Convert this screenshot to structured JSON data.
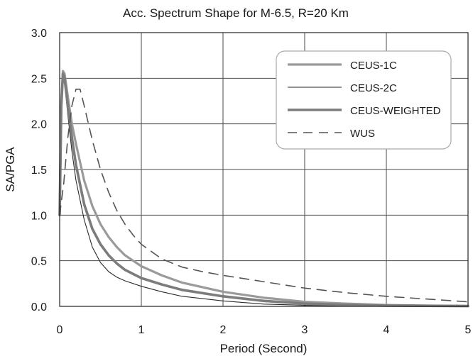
{
  "chart_data": {
    "type": "line",
    "title": "Acc. Spectrum Shape for M-6.5, R=20 Km",
    "xlabel": "Period (Second)",
    "ylabel": "SA/PGA",
    "xlim": [
      0,
      5
    ],
    "ylim": [
      0,
      3
    ],
    "xticks": [
      0,
      1,
      2,
      3,
      4,
      5
    ],
    "xtick_labels": [
      "0",
      "1",
      "2",
      "3",
      "4",
      "5"
    ],
    "yticks": [
      0,
      0.5,
      1,
      1.5,
      2,
      2.5,
      3
    ],
    "ytick_labels": [
      "0.0",
      "0.5",
      "1.0",
      "1.5",
      "2.0",
      "2.5",
      "3.0"
    ],
    "grid": true,
    "legend_position": "top-right",
    "series": [
      {
        "name": "CEUS-1C",
        "color": "#9a9a9a",
        "style": "solid-thick",
        "points": [
          [
            0,
            1.0
          ],
          [
            0.02,
            2.2
          ],
          [
            0.04,
            2.58
          ],
          [
            0.06,
            2.55
          ],
          [
            0.1,
            2.3
          ],
          [
            0.15,
            2.0
          ],
          [
            0.2,
            1.78
          ],
          [
            0.3,
            1.38
          ],
          [
            0.4,
            1.1
          ],
          [
            0.5,
            0.9
          ],
          [
            0.6,
            0.76
          ],
          [
            0.7,
            0.65
          ],
          [
            0.8,
            0.56
          ],
          [
            1.0,
            0.44
          ],
          [
            1.25,
            0.34
          ],
          [
            1.5,
            0.26
          ],
          [
            2.0,
            0.16
          ],
          [
            2.5,
            0.095
          ],
          [
            3.0,
            0.05
          ],
          [
            3.5,
            0.03
          ],
          [
            4.0,
            0.015
          ],
          [
            4.5,
            0.008
          ],
          [
            5.0,
            0.005
          ]
        ]
      },
      {
        "name": "CEUS-2C",
        "color": "#2a2a2a",
        "style": "solid-thin",
        "points": [
          [
            0,
            1.0
          ],
          [
            0.02,
            2.25
          ],
          [
            0.04,
            2.55
          ],
          [
            0.06,
            2.45
          ],
          [
            0.1,
            2.1
          ],
          [
            0.15,
            1.7
          ],
          [
            0.2,
            1.38
          ],
          [
            0.3,
            0.95
          ],
          [
            0.4,
            0.65
          ],
          [
            0.5,
            0.48
          ],
          [
            0.6,
            0.38
          ],
          [
            0.7,
            0.32
          ],
          [
            0.8,
            0.28
          ],
          [
            1.0,
            0.22
          ],
          [
            1.25,
            0.16
          ],
          [
            1.5,
            0.11
          ],
          [
            2.0,
            0.06
          ],
          [
            2.5,
            0.025
          ],
          [
            3.0,
            0.012
          ],
          [
            3.5,
            0.006
          ],
          [
            4.0,
            0.003
          ],
          [
            5.0,
            0.001
          ]
        ]
      },
      {
        "name": "CEUS-WEIGHTED",
        "color": "#7c7c7c",
        "style": "solid-heavy",
        "points": [
          [
            0,
            1.0
          ],
          [
            0.02,
            2.2
          ],
          [
            0.04,
            2.55
          ],
          [
            0.06,
            2.5
          ],
          [
            0.1,
            2.2
          ],
          [
            0.15,
            1.85
          ],
          [
            0.2,
            1.55
          ],
          [
            0.3,
            1.12
          ],
          [
            0.4,
            0.85
          ],
          [
            0.5,
            0.68
          ],
          [
            0.6,
            0.56
          ],
          [
            0.7,
            0.47
          ],
          [
            0.8,
            0.4
          ],
          [
            1.0,
            0.31
          ],
          [
            1.25,
            0.24
          ],
          [
            1.5,
            0.18
          ],
          [
            2.0,
            0.11
          ],
          [
            2.5,
            0.06
          ],
          [
            3.0,
            0.03
          ],
          [
            3.5,
            0.016
          ],
          [
            4.0,
            0.008
          ],
          [
            5.0,
            0.003
          ]
        ]
      },
      {
        "name": "WUS",
        "color": "#555555",
        "style": "dashed",
        "points": [
          [
            0,
            1.0
          ],
          [
            0.05,
            1.35
          ],
          [
            0.1,
            1.85
          ],
          [
            0.15,
            2.2
          ],
          [
            0.2,
            2.38
          ],
          [
            0.25,
            2.38
          ],
          [
            0.3,
            2.2
          ],
          [
            0.4,
            1.82
          ],
          [
            0.5,
            1.5
          ],
          [
            0.6,
            1.25
          ],
          [
            0.7,
            1.05
          ],
          [
            0.8,
            0.9
          ],
          [
            0.9,
            0.78
          ],
          [
            1.0,
            0.68
          ],
          [
            1.25,
            0.52
          ],
          [
            1.5,
            0.43
          ],
          [
            1.75,
            0.38
          ],
          [
            2.0,
            0.34
          ],
          [
            2.5,
            0.27
          ],
          [
            3.0,
            0.2
          ],
          [
            3.5,
            0.15
          ],
          [
            4.0,
            0.11
          ],
          [
            4.5,
            0.08
          ],
          [
            5.0,
            0.05
          ]
        ]
      }
    ]
  }
}
